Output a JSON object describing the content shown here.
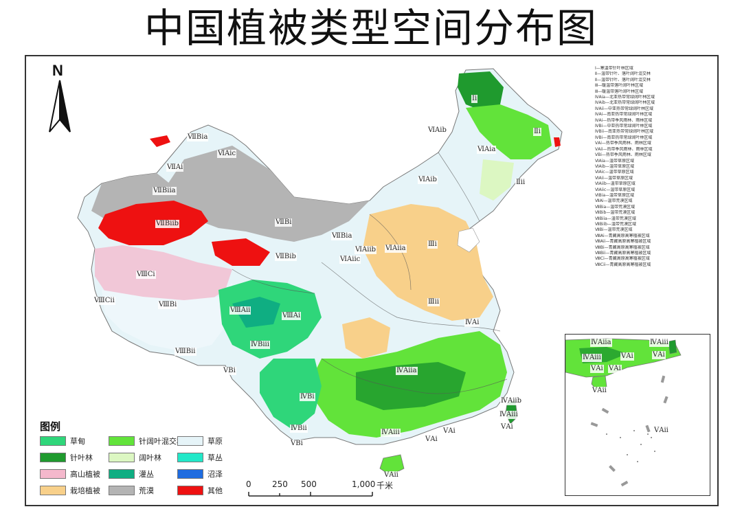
{
  "title": "中国植被类型空间分布图",
  "north_arrow": {
    "label": "N"
  },
  "legend": {
    "title": "图例",
    "items": [
      {
        "label": "草甸",
        "color": "#2fd67a"
      },
      {
        "label": "针叶林",
        "color": "#1f9a2e"
      },
      {
        "label": "高山植被",
        "color": "#f4b8cc"
      },
      {
        "label": "栽培植被",
        "color": "#f8d08a"
      },
      {
        "label": "针阔叶混交林",
        "color": "#62e33a"
      },
      {
        "label": "阔叶林",
        "color": "#dcf7c2"
      },
      {
        "label": "灌丛",
        "color": "#0fae82"
      },
      {
        "label": "荒漠",
        "color": "#b4b4b4"
      },
      {
        "label": "草原",
        "color": "#e6f4f8"
      },
      {
        "label": "草丛",
        "color": "#22e8c8"
      },
      {
        "label": "沼泽",
        "color": "#1f6ce0"
      },
      {
        "label": "其他",
        "color": "#ee1111"
      }
    ]
  },
  "scale_bar": {
    "ticks": [
      "0",
      "250",
      "500",
      "1,000"
    ],
    "unit": "千米"
  },
  "zone_list": [
    "Ⅰ—寒温带针叶林区域",
    "Ⅱ—温带针叶、落叶阔叶混交林",
    "Ⅱ—温带针叶、落叶阔叶混交林",
    "Ⅲ—暖温带落叶阔叶林区域",
    "Ⅲ—暖温带落叶阔叶林区域",
    "ⅣAia—北亚热带常绿阔叶林区域",
    "ⅣAib—北亚热带常绿阔叶林区域",
    "ⅣAii—中亚热带常绿阔叶林区域",
    "ⅣAi—南亚热带常绿阔叶林区域",
    "ⅣAi—热带季风雨林、雨林区域",
    "ⅣBi—中亚热带常绿阔叶林区域",
    "ⅣBii—南亚热带常绿阔叶林区域",
    "ⅣBi—南亚热带常绿阔叶林区域",
    "ⅤAi—热带季风雨林、雨林区域",
    "ⅤAii—热带季风雨林、雨林区域",
    "ⅤBi—热带季风雨林、雨林区域",
    "ⅥAia—温带草原区域",
    "ⅥAib—温带草原区域",
    "ⅥAic—温带草原区域",
    "ⅥAii—温带草原区域",
    "ⅥAiib—温带草原区域",
    "ⅥAiic—温带草原区域",
    "ⅥBia—温带草原区域",
    "ⅦAi—温带荒漠区域",
    "ⅦBia—温带荒漠区域",
    "ⅦBib—温带荒漠区域",
    "ⅦBiia—温带荒漠区域",
    "ⅦBiib—温带荒漠区域",
    "ⅦBi—温带荒漠区域",
    "ⅧAi—青藏高原高寒植被区域",
    "ⅧAii—青藏高原高寒植被区域",
    "ⅧBi—青藏高原高寒植被区域",
    "ⅧBii—青藏高原高寒植被区域",
    "ⅧCi—青藏高原高寒植被区域",
    "ⅧCii—青藏高原高寒植被区域"
  ],
  "region_labels": {
    "r1": "Ⅰi",
    "r2": "ⅥAib",
    "r3": "Ⅱi",
    "r4": "ⅥAia",
    "r5": "Ⅱii",
    "r6": "ⅥAib",
    "r7": "ⅦBia",
    "r8": "ⅥAic",
    "r9": "ⅦAi",
    "r10": "ⅦBiia",
    "r11": "ⅦBiib",
    "r12": "ⅦBi",
    "r13": "ⅦBia",
    "r14": "ⅥAiib",
    "r15": "ⅥAiia",
    "r16": "Ⅲi",
    "r17": "ⅦBib",
    "r18": "ⅥAiic",
    "r19": "ⅧCi",
    "r20": "ⅧCii",
    "r21": "ⅧBi",
    "r22": "ⅧAii",
    "r23": "ⅧAi",
    "r24": "Ⅲii",
    "r25": "ⅣAi",
    "r26": "ⅧBii",
    "r27": "ⅣBiii",
    "r28": "ⅤBi",
    "r29": "ⅣAiia",
    "r30": "ⅣBi",
    "r31": "ⅣBii",
    "r32": "ⅤBi",
    "r33": "ⅣAiii",
    "r34": "ⅣAiib",
    "r35": "ⅣAiii",
    "r36": "ⅤAi",
    "r37": "ⅤAi",
    "r38": "ⅤAi",
    "r39": "ⅤAii"
  },
  "inset_labels": {
    "i1": "ⅣAiia",
    "i2": "ⅣAiii",
    "i3": "ⅣAiii",
    "i4": "ⅤAi",
    "i5": "ⅤAi",
    "i6": "ⅤAi",
    "i7": "ⅤAi",
    "i8": "ⅤAii",
    "i9": "ⅤAii"
  }
}
